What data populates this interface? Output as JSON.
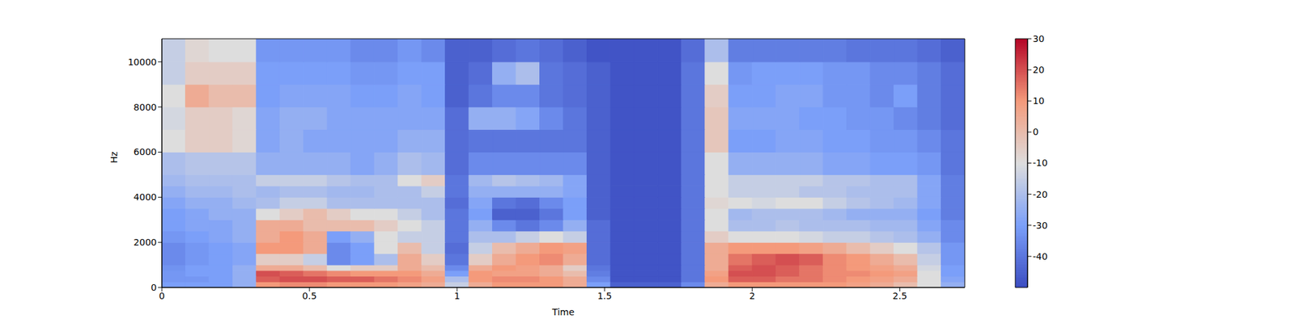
{
  "chart_data": {
    "type": "heatmap",
    "x_label": "Time",
    "y_label": "Hz",
    "xlim": [
      0,
      2.72
    ],
    "ylim": [
      0,
      11025
    ],
    "xticks": [
      0,
      0.5,
      1,
      1.5,
      2,
      2.5
    ],
    "yticks": [
      0,
      2000,
      4000,
      6000,
      8000,
      10000
    ],
    "x_edges": [
      0,
      0.08,
      0.16,
      0.24,
      0.32,
      0.4,
      0.48,
      0.56,
      0.64,
      0.72,
      0.8,
      0.88,
      0.96,
      1.04,
      1.12,
      1.2,
      1.28,
      1.36,
      1.44,
      1.52,
      1.6,
      1.68,
      1.76,
      1.84,
      1.92,
      2,
      2.08,
      2.16,
      2.24,
      2.32,
      2.4,
      2.48,
      2.56,
      2.64,
      2.72
    ],
    "y_edges": [
      0,
      250,
      500,
      750,
      1000,
      1500,
      2000,
      2500,
      3000,
      3500,
      4000,
      4500,
      5000,
      6000,
      7000,
      8000,
      9000,
      10000,
      11025
    ],
    "z": [
      [
        -30,
        -30,
        -30,
        -25,
        10,
        12,
        12,
        10,
        10,
        10,
        8,
        5,
        -15,
        5,
        10,
        10,
        10,
        5,
        -30,
        -45,
        -45,
        -45,
        -35,
        5,
        10,
        10,
        10,
        10,
        10,
        8,
        5,
        0,
        -10,
        -25
      ],
      [
        -32,
        -32,
        -30,
        -25,
        18,
        20,
        20,
        18,
        18,
        15,
        12,
        8,
        -20,
        10,
        12,
        12,
        10,
        5,
        -35,
        -48,
        -48,
        -48,
        -40,
        10,
        18,
        18,
        15,
        15,
        12,
        10,
        8,
        5,
        -10,
        -28
      ],
      [
        -32,
        -30,
        -30,
        -25,
        20,
        18,
        15,
        12,
        10,
        10,
        10,
        5,
        -30,
        10,
        8,
        8,
        5,
        0,
        -38,
        -48,
        -48,
        -48,
        -40,
        8,
        20,
        20,
        18,
        15,
        12,
        12,
        10,
        8,
        -10,
        -30
      ],
      [
        -33,
        -30,
        -30,
        -25,
        5,
        5,
        0,
        -10,
        -5,
        -5,
        5,
        0,
        -35,
        5,
        10,
        8,
        5,
        -5,
        -40,
        -48,
        -48,
        -48,
        -40,
        5,
        18,
        20,
        18,
        15,
        12,
        10,
        8,
        5,
        -12,
        -30
      ],
      [
        -35,
        -32,
        -30,
        -28,
        -5,
        -5,
        -15,
        -35,
        -30,
        -20,
        5,
        -5,
        -40,
        -5,
        5,
        10,
        12,
        5,
        -42,
        -48,
        -48,
        -48,
        -40,
        5,
        15,
        18,
        20,
        18,
        12,
        10,
        5,
        0,
        -15,
        -32
      ],
      [
        -35,
        -32,
        -30,
        -28,
        10,
        10,
        5,
        -35,
        -30,
        -10,
        0,
        -15,
        -42,
        -15,
        0,
        5,
        10,
        8,
        -42,
        -48,
        -48,
        -48,
        -40,
        5,
        10,
        10,
        10,
        8,
        5,
        0,
        -5,
        -10,
        -18,
        -32
      ],
      [
        -32,
        -30,
        -28,
        -25,
        5,
        10,
        5,
        -30,
        -25,
        -10,
        -15,
        -15,
        -40,
        -20,
        -20,
        -15,
        -10,
        -15,
        -42,
        -48,
        -48,
        -48,
        -40,
        -5,
        -10,
        -10,
        -10,
        -12,
        -15,
        -15,
        -18,
        -20,
        -25,
        -35
      ],
      [
        -30,
        -28,
        -28,
        -25,
        5,
        5,
        0,
        0,
        0,
        -5,
        -10,
        -15,
        -40,
        -25,
        -35,
        -40,
        -35,
        -25,
        -42,
        -48,
        -48,
        -48,
        -40,
        -10,
        -20,
        -20,
        -18,
        -20,
        -20,
        -20,
        -22,
        -22,
        -28,
        -35
      ],
      [
        -30,
        -28,
        -25,
        -25,
        -10,
        -5,
        0,
        -5,
        -10,
        -10,
        -15,
        -20,
        -40,
        -30,
        -45,
        -45,
        -40,
        -30,
        -45,
        -48,
        -48,
        -48,
        -40,
        -10,
        -22,
        -20,
        -20,
        -20,
        -22,
        -25,
        -25,
        -25,
        -30,
        -38
      ],
      [
        -28,
        -25,
        -25,
        -22,
        -20,
        -15,
        -15,
        -20,
        -20,
        -20,
        -20,
        -20,
        -42,
        -28,
        -40,
        -42,
        -35,
        -30,
        -45,
        -48,
        -48,
        -48,
        -40,
        -8,
        -10,
        -12,
        -10,
        -10,
        -15,
        -18,
        -20,
        -22,
        -28,
        -38
      ],
      [
        -25,
        -22,
        -22,
        -20,
        -22,
        -20,
        -20,
        -22,
        -22,
        -20,
        -20,
        -15,
        -40,
        -25,
        -25,
        -25,
        -25,
        -28,
        -45,
        -48,
        -48,
        -48,
        -40,
        -10,
        -15,
        -15,
        -15,
        -18,
        -18,
        -20,
        -20,
        -20,
        -28,
        -38
      ],
      [
        -22,
        -20,
        -20,
        -20,
        -15,
        -15,
        -15,
        -18,
        -20,
        -20,
        -10,
        -5,
        -40,
        -22,
        -18,
        -20,
        -22,
        -28,
        -45,
        -48,
        -48,
        -48,
        -40,
        -10,
        -15,
        -15,
        -15,
        -15,
        -18,
        -18,
        -20,
        -20,
        -28,
        -38
      ],
      [
        -20,
        -18,
        -18,
        -18,
        -25,
        -25,
        -25,
        -25,
        -28,
        -25,
        -20,
        -22,
        -42,
        -35,
        -35,
        -35,
        -35,
        -35,
        -45,
        -48,
        -48,
        -48,
        -40,
        -10,
        -25,
        -25,
        -25,
        -25,
        -28,
        -28,
        -30,
        -30,
        -32,
        -40
      ],
      [
        -10,
        -5,
        -5,
        -8,
        -28,
        -25,
        -28,
        -28,
        -28,
        -28,
        -25,
        -25,
        -42,
        -40,
        -40,
        -40,
        -40,
        -40,
        -45,
        -48,
        -48,
        -48,
        -40,
        -3,
        -30,
        -30,
        -28,
        -28,
        -30,
        -30,
        -32,
        -32,
        -35,
        -40
      ],
      [
        -12,
        -5,
        -5,
        -8,
        -28,
        -25,
        -25,
        -28,
        -28,
        -28,
        -28,
        -28,
        -42,
        -25,
        -25,
        -28,
        -35,
        -40,
        -45,
        -48,
        -48,
        -48,
        -40,
        -3,
        -28,
        -28,
        -28,
        -30,
        -30,
        -32,
        -32,
        -35,
        -38,
        -42
      ],
      [
        -10,
        5,
        0,
        0,
        -30,
        -28,
        -28,
        -28,
        -30,
        -30,
        -28,
        -30,
        -45,
        -40,
        -35,
        -35,
        -40,
        -42,
        -45,
        -48,
        -48,
        -48,
        -40,
        -5,
        -30,
        -30,
        -28,
        -28,
        -32,
        -32,
        -35,
        -30,
        -38,
        -42
      ],
      [
        -15,
        -5,
        -5,
        -5,
        -30,
        -30,
        -30,
        -30,
        -32,
        -32,
        -30,
        -30,
        -45,
        -42,
        -25,
        -20,
        -40,
        -42,
        -45,
        -48,
        -48,
        -48,
        -40,
        -10,
        -32,
        -30,
        -30,
        -30,
        -32,
        -32,
        -35,
        -35,
        -38,
        -42
      ],
      [
        -15,
        -8,
        -10,
        -10,
        -32,
        -32,
        -32,
        -32,
        -35,
        -35,
        -32,
        -35,
        -45,
        -45,
        -42,
        -40,
        -42,
        -45,
        -48,
        -48,
        -48,
        -48,
        -42,
        -20,
        -38,
        -38,
        -38,
        -38,
        -38,
        -40,
        -40,
        -40,
        -42,
        -45
      ]
    ],
    "colorbar": {
      "zlim": [
        -50,
        30
      ],
      "zticks": [
        -40,
        -30,
        -20,
        -10,
        0,
        10,
        20,
        30
      ]
    }
  }
}
